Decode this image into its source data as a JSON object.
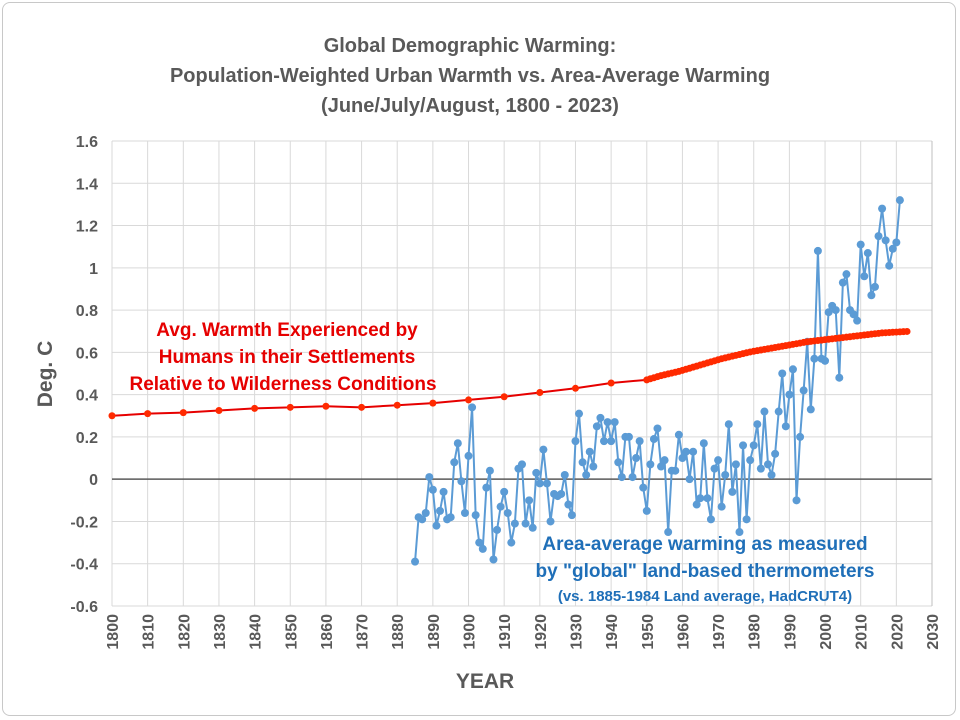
{
  "chart_data": {
    "type": "line",
    "title": [
      "Global Demographic Warming:",
      "Population-Weighted Urban Warmth vs. Area-Average Warming",
      "(June/July/August, 1800 - 2023)"
    ],
    "xlabel": "YEAR",
    "ylabel": "Deg. C",
    "xlim": [
      1800,
      2030
    ],
    "ylim": [
      -0.6,
      1.6
    ],
    "xticks": [
      "1800",
      "1810",
      "1820",
      "1830",
      "1840",
      "1850",
      "1860",
      "1870",
      "1880",
      "1890",
      "1900",
      "1910",
      "1920",
      "1930",
      "1940",
      "1950",
      "1960",
      "1970",
      "1980",
      "1990",
      "2000",
      "2010",
      "2020",
      "2030"
    ],
    "yticks": [
      "-0.6",
      "-0.4",
      "-0.2",
      "0",
      "0.2",
      "0.4",
      "0.6",
      "0.8",
      "1",
      "1.2",
      "1.4",
      "1.6"
    ],
    "grid": true,
    "series": [
      {
        "name": "Avg. Warmth Experienced by Humans in their Settlements Relative to Wilderness Conditions",
        "color": "#e60000",
        "x": [
          1800,
          1810,
          1820,
          1830,
          1840,
          1850,
          1860,
          1870,
          1880,
          1890,
          1900,
          1910,
          1920,
          1930,
          1940,
          1950,
          1951,
          1952,
          1953,
          1954,
          1955,
          1956,
          1957,
          1958,
          1959,
          1960,
          1961,
          1962,
          1963,
          1964,
          1965,
          1966,
          1967,
          1968,
          1969,
          1970,
          1971,
          1972,
          1973,
          1974,
          1975,
          1976,
          1977,
          1978,
          1979,
          1980,
          1981,
          1982,
          1983,
          1984,
          1985,
          1986,
          1987,
          1988,
          1989,
          1990,
          1991,
          1992,
          1993,
          1994,
          1995,
          1996,
          1997,
          1998,
          1999,
          2000,
          2001,
          2002,
          2003,
          2004,
          2005,
          2006,
          2007,
          2008,
          2009,
          2010,
          2011,
          2012,
          2013,
          2014,
          2015,
          2016,
          2017,
          2018,
          2019,
          2020,
          2021,
          2022,
          2023
        ],
        "y": [
          0.3,
          0.31,
          0.315,
          0.325,
          0.335,
          0.34,
          0.345,
          0.34,
          0.35,
          0.36,
          0.375,
          0.39,
          0.41,
          0.43,
          0.455,
          0.47,
          0.475,
          0.48,
          0.485,
          0.49,
          0.494,
          0.498,
          0.502,
          0.506,
          0.51,
          0.515,
          0.52,
          0.525,
          0.53,
          0.535,
          0.54,
          0.545,
          0.55,
          0.555,
          0.56,
          0.565,
          0.57,
          0.574,
          0.578,
          0.582,
          0.586,
          0.59,
          0.594,
          0.598,
          0.602,
          0.605,
          0.608,
          0.611,
          0.614,
          0.617,
          0.62,
          0.623,
          0.626,
          0.629,
          0.632,
          0.635,
          0.638,
          0.641,
          0.644,
          0.647,
          0.65,
          0.652,
          0.654,
          0.656,
          0.658,
          0.66,
          0.662,
          0.664,
          0.666,
          0.668,
          0.67,
          0.672,
          0.674,
          0.676,
          0.678,
          0.68,
          0.682,
          0.684,
          0.686,
          0.688,
          0.69,
          0.692,
          0.693,
          0.694,
          0.695,
          0.696,
          0.697,
          0.698,
          0.699
        ]
      },
      {
        "name": "Area-average warming as measured by \"global\" land-based thermometers",
        "color": "#5b9bd5",
        "x_start": 1885,
        "y": [
          -0.39,
          -0.18,
          -0.19,
          -0.16,
          0.01,
          -0.05,
          -0.22,
          -0.15,
          -0.06,
          -0.19,
          -0.18,
          0.08,
          0.17,
          -0.01,
          -0.16,
          0.11,
          0.34,
          -0.17,
          -0.3,
          -0.33,
          -0.04,
          0.04,
          -0.38,
          -0.24,
          -0.13,
          -0.06,
          -0.16,
          -0.3,
          -0.21,
          0.05,
          0.07,
          -0.21,
          -0.1,
          -0.23,
          0.03,
          -0.02,
          0.14,
          -0.02,
          -0.2,
          -0.07,
          -0.08,
          -0.07,
          0.02,
          -0.12,
          -0.17,
          0.18,
          0.31,
          0.08,
          0.02,
          0.13,
          0.06,
          0.25,
          0.29,
          0.18,
          0.27,
          0.18,
          0.27,
          0.08,
          0.01,
          0.2,
          0.2,
          0.01,
          0.1,
          0.18,
          -0.04,
          -0.15,
          0.07,
          0.19,
          0.24,
          0.06,
          0.09,
          -0.25,
          0.04,
          0.04,
          0.21,
          0.1,
          0.13,
          0.0,
          0.13,
          -0.12,
          -0.09,
          0.17,
          -0.09,
          -0.19,
          0.05,
          0.09,
          -0.13,
          0.02,
          0.26,
          -0.06,
          0.07,
          -0.25,
          0.16,
          -0.19,
          0.09,
          0.16,
          0.26,
          0.05,
          0.32,
          0.07,
          0.02,
          0.12,
          0.32,
          0.5,
          0.25,
          0.4,
          0.52,
          -0.1,
          0.2,
          0.42,
          0.65,
          0.33,
          0.57,
          1.08,
          0.57,
          0.56,
          0.79,
          0.82,
          0.8,
          0.48,
          0.93,
          0.97,
          0.8,
          0.78,
          0.75,
          1.11,
          0.96,
          1.07,
          0.87,
          0.91,
          1.15,
          1.28,
          1.13,
          1.01,
          1.09,
          1.12,
          1.32
        ]
      }
    ],
    "annotations": {
      "red": [
        "Avg. Warmth Experienced by",
        "Humans in their Settlements",
        "Relative to Wilderness Conditions"
      ],
      "blue": [
        "Area-average warming as measured",
        "by \"global\" land-based thermometers"
      ],
      "blue_note": "(vs. 1885-1984 Land average, HadCRUT4)"
    }
  }
}
